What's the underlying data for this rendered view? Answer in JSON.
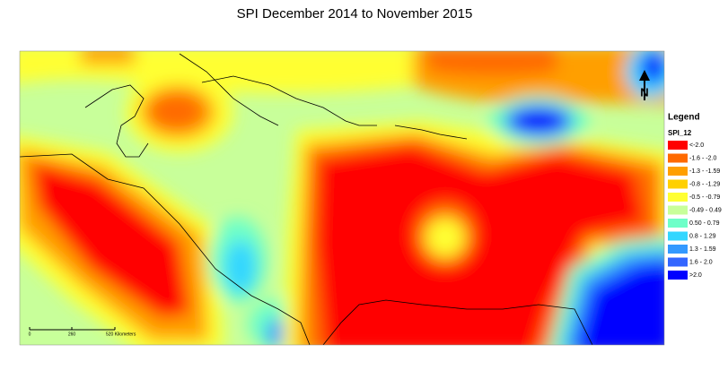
{
  "title": "SPI December 2014  to November 2015",
  "map": {
    "north_label": "N",
    "scale_labels": [
      "0",
      "260",
      "520 Kilometers"
    ]
  },
  "legend": {
    "title": "Legend",
    "field": "SPI_12",
    "items": [
      {
        "label": "<-2.0",
        "color": "#ff0000"
      },
      {
        "label": "-1.6 - -2.0",
        "color": "#ff6a00"
      },
      {
        "label": "-1.3 - -1.59",
        "color": "#ff9f00"
      },
      {
        "label": "-0.8 - -1.29",
        "color": "#ffd000"
      },
      {
        "label": "-0.5 - -0.79",
        "color": "#ffff33"
      },
      {
        "label": "-0.49 - 0.49",
        "color": "#c8ff9a"
      },
      {
        "label": "0.50 - 0.79",
        "color": "#6effc8"
      },
      {
        "label": "0.8 - 1.29",
        "color": "#33d6ff"
      },
      {
        "label": "1.3 - 1.59",
        "color": "#3399ff"
      },
      {
        "label": "1.6 - 2.0",
        "color": "#3366ff"
      },
      {
        "label": ">2.0",
        "color": "#0000ff"
      }
    ]
  }
}
